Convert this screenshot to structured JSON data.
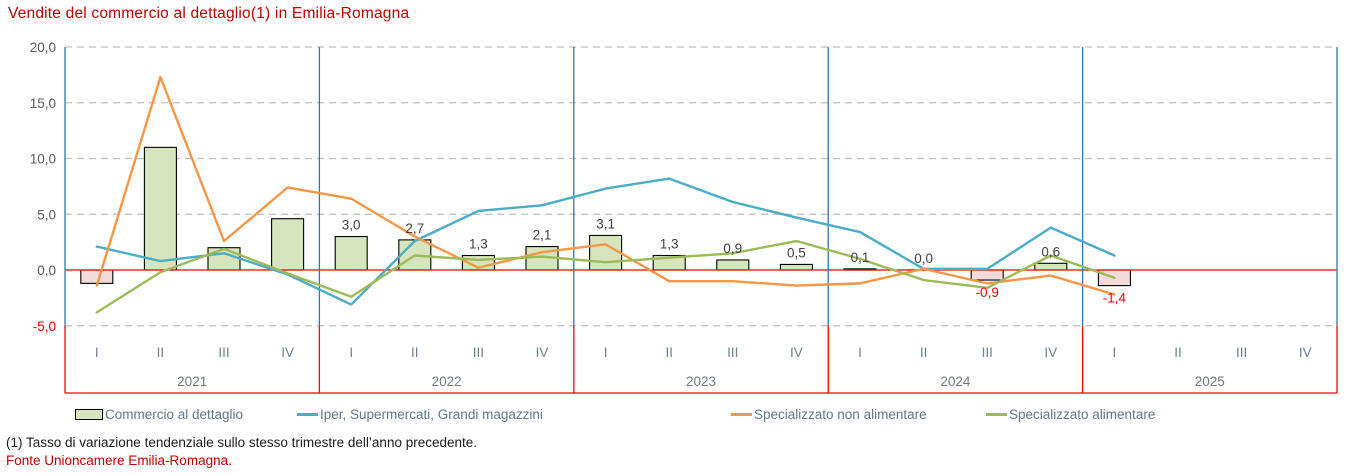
{
  "title": "Vendite del commercio al dettaglio(1) in Emilia-Romagna",
  "footnote": "(1) Tasso di variazione tendenziale sullo stesso trimestre dell’anno precedente.",
  "source": "Fonte Unioncamere Emilia-Romagna.",
  "colors": {
    "title_red": "#c00000",
    "axis_blue": "#2e75b6",
    "axis_red": "#ff0000",
    "grid_gray": "#bfbfbf",
    "bar_positive_fill": "#d7e4bd",
    "bar_negative_fill": "#f2dcdb",
    "bar_border": "#000000",
    "line_iper": "#4bacc6",
    "line_non_alimentare": "#f79646",
    "line_alimentare": "#9bbb59",
    "tick_label": "#595959",
    "data_label": "#404040",
    "negative_label": "#ff0000",
    "quarter_label": "#6c7f91",
    "year_label": "#73797f",
    "legend_text": "#5f7887"
  },
  "y_axis": {
    "ticks": [
      {
        "label": "20,0",
        "value": 20
      },
      {
        "label": "15,0",
        "value": 15
      },
      {
        "label": "10,0",
        "value": 10
      },
      {
        "label": "5,0",
        "value": 5
      },
      {
        "label": "0,0",
        "value": 0
      },
      {
        "label": "-5,0",
        "value": -5
      }
    ]
  },
  "x_axis": {
    "years": [
      "2021",
      "2022",
      "2023",
      "2024",
      "2025"
    ],
    "quarters": [
      "I",
      "II",
      "III",
      "IV"
    ]
  },
  "legend": {
    "items": [
      {
        "label": "Commercio al dettaglio",
        "swatch": "bar",
        "color": "#d7e4bd"
      },
      {
        "label": "Iper, Supermercati, Grandi magazzini",
        "swatch": "line",
        "color": "#4bacc6"
      },
      {
        "label": "Specializzato non alimentare",
        "swatch": "line",
        "color": "#f79646"
      },
      {
        "label": "Specializzato alimentare",
        "swatch": "line",
        "color": "#9bbb59"
      }
    ]
  },
  "chart_data": {
    "type": "bar",
    "subtype": "bar+line combo, quarterly",
    "title": "Vendite del commercio al dettaglio(1) in Emilia-Romagna",
    "ylim": [
      -5,
      20
    ],
    "grid_values": [
      20,
      15,
      10,
      5,
      -5
    ],
    "grid": "dashed horizontal, solid red zero line, blue vertical year separators",
    "legend_position": "bottom",
    "categories": [
      "2021-I",
      "2021-II",
      "2021-III",
      "2021-IV",
      "2022-I",
      "2022-II",
      "2022-III",
      "2022-IV",
      "2023-I",
      "2023-II",
      "2023-III",
      "2023-IV",
      "2024-I",
      "2024-II",
      "2024-III",
      "2024-IV",
      "2025-I"
    ],
    "bar_series": {
      "name": "Commercio al dettaglio",
      "values": [
        -1.2,
        11.0,
        2.0,
        4.6,
        3.0,
        2.7,
        1.3,
        2.1,
        3.1,
        1.3,
        0.9,
        0.5,
        0.1,
        0.0,
        -0.9,
        0.6,
        -1.4
      ],
      "labels": [
        "",
        "",
        "",
        "",
        "3,0",
        "2,7",
        "1,3",
        "2,1",
        "3,1",
        "1,3",
        "0,9",
        "0,5",
        "0,1",
        "0,0",
        "-0,9",
        "0,6",
        "-1,4"
      ]
    },
    "line_series": [
      {
        "name": "Iper, Supermercati, Grandi magazzini",
        "color_key": "line_iper",
        "values": [
          2.1,
          0.8,
          1.5,
          -0.4,
          -3.1,
          2.6,
          5.3,
          5.8,
          7.3,
          8.2,
          6.1,
          4.7,
          3.4,
          0.1,
          0.1,
          3.8,
          1.3
        ]
      },
      {
        "name": "Specializzato non alimentare",
        "color_key": "line_non_alimentare",
        "values": [
          -1.4,
          17.3,
          2.6,
          7.4,
          6.4,
          3.0,
          0.2,
          1.6,
          2.3,
          -1.0,
          -1.0,
          -1.4,
          -1.2,
          0.1,
          -1.2,
          -0.5,
          -2.2
        ]
      },
      {
        "name": "Specializzato alimentare",
        "color_key": "line_alimentare",
        "values": [
          -3.8,
          -0.2,
          1.9,
          -0.3,
          -2.4,
          1.3,
          0.9,
          1.2,
          0.7,
          1.1,
          1.5,
          2.6,
          1.0,
          -0.9,
          -1.6,
          1.3,
          -0.7
        ]
      }
    ]
  }
}
